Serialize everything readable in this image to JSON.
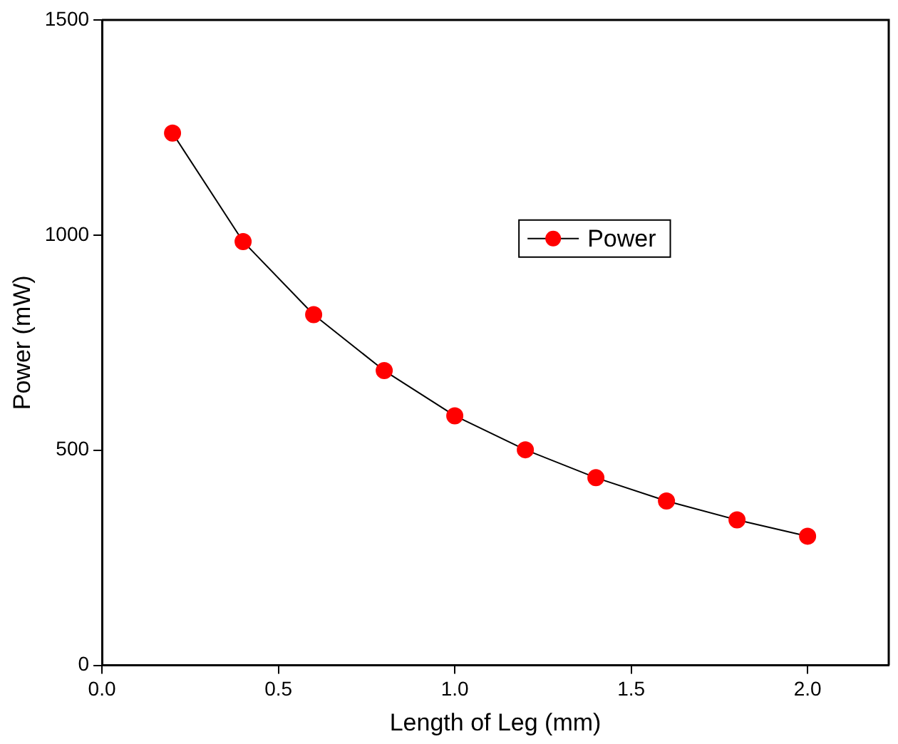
{
  "chart_data": {
    "type": "line",
    "xlabel": "Length of Leg (mm)",
    "ylabel": "Power (mW)",
    "x": [
      0.2,
      0.4,
      0.6,
      0.8,
      1.0,
      1.2,
      1.4,
      1.6,
      1.8,
      2.0
    ],
    "series": [
      {
        "name": "Power",
        "color": "#ff0000",
        "values": [
          1237,
          985,
          815,
          685,
          580,
          501,
          436,
          382,
          338,
          300
        ]
      }
    ],
    "xlim": [
      0,
      2.23
    ],
    "xticks": [
      {
        "value": 0,
        "label": "0.0"
      },
      {
        "value": 0.5,
        "label": "0.5"
      },
      {
        "value": 1,
        "label": "1.0"
      },
      {
        "value": 1.5,
        "label": "1.5"
      },
      {
        "value": 2,
        "label": "2.0"
      }
    ],
    "ylim": [
      0,
      1500
    ],
    "yticks": [
      0,
      500,
      1000,
      1500
    ],
    "grid": false,
    "legend": "top right",
    "marker": "circle",
    "line_style": "solid"
  }
}
